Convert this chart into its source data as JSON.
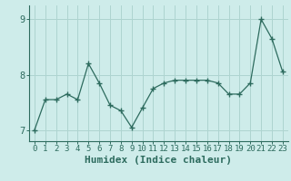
{
  "x": [
    0,
    1,
    2,
    3,
    4,
    5,
    6,
    7,
    8,
    9,
    10,
    11,
    12,
    13,
    14,
    15,
    16,
    17,
    18,
    19,
    20,
    21,
    22,
    23
  ],
  "y": [
    7.0,
    7.55,
    7.55,
    7.65,
    7.55,
    8.2,
    7.85,
    7.45,
    7.35,
    7.05,
    7.4,
    7.75,
    7.85,
    7.9,
    7.9,
    7.9,
    7.9,
    7.85,
    7.65,
    7.65,
    7.85,
    9.0,
    8.65,
    8.05
  ],
  "xlim": [
    -0.5,
    23.5
  ],
  "ylim": [
    6.8,
    9.25
  ],
  "yticks": [
    7,
    8,
    9
  ],
  "xticks": [
    0,
    1,
    2,
    3,
    4,
    5,
    6,
    7,
    8,
    9,
    10,
    11,
    12,
    13,
    14,
    15,
    16,
    17,
    18,
    19,
    20,
    21,
    22,
    23
  ],
  "xlabel": "Humidex (Indice chaleur)",
  "line_color": "#2d6b5e",
  "marker": "+",
  "marker_size": 4,
  "bg_color": "#ceecea",
  "grid_color": "#aed4d0",
  "fig_bg": "#ceecea",
  "tick_label_fontsize": 6.5,
  "xlabel_fontsize": 8,
  "ylabel_fontsize": 8
}
